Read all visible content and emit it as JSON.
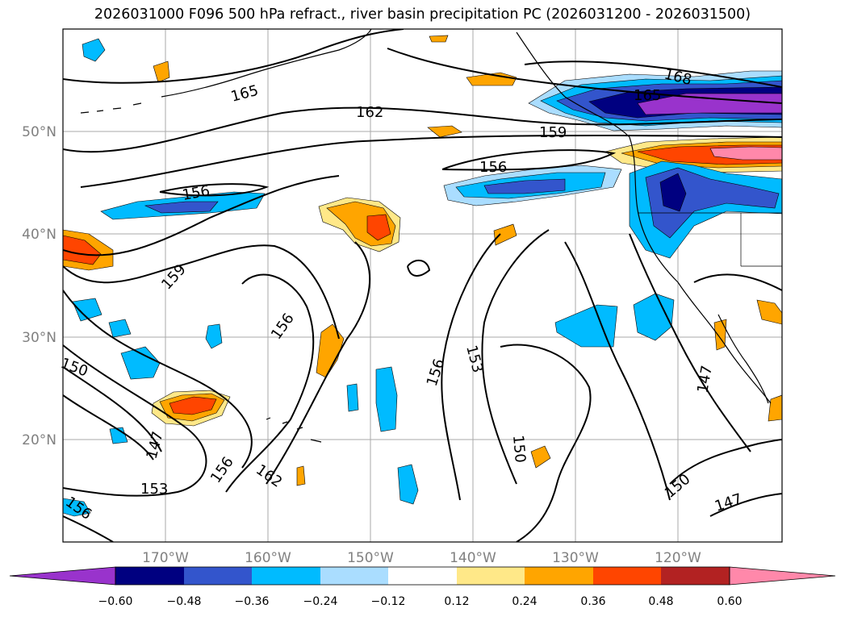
{
  "title": "2026031000 F096 500 hPa refract., river basin precipitation PC (2026031200 - 2026031500)",
  "map": {
    "lat_ticks": [
      "50°N",
      "40°N",
      "30°N",
      "20°N"
    ],
    "lon_ticks": [
      "170°W",
      "160°W",
      "150°W",
      "140°W",
      "130°W",
      "120°W"
    ],
    "contour_labels": [
      "168",
      "165",
      "165",
      "162",
      "159",
      "156",
      "156",
      "159",
      "156",
      "153",
      "156",
      "150",
      "147",
      "153",
      "156",
      "162",
      "150",
      "150",
      "147",
      "147",
      "156"
    ]
  },
  "colorbar": {
    "ticks": [
      "−0.60",
      "−0.48",
      "−0.36",
      "−0.24",
      "−0.12",
      "0.12",
      "0.24",
      "0.36",
      "0.48",
      "0.60"
    ],
    "colors": [
      "#9933cc",
      "#000080",
      "#3355cc",
      "#00bbff",
      "#aaddff",
      "#ffffff",
      "#ffe888",
      "#ffa500",
      "#ff4500",
      "#b22222",
      "#ff88aa"
    ]
  },
  "colors": {
    "neg_purple": "#9933cc",
    "neg_navy": "#000080",
    "neg_blue": "#3355cc",
    "neg_cyan": "#00bbff",
    "neg_light": "#aaddff",
    "pos_yellow": "#ffe888",
    "pos_orange": "#ffa500",
    "pos_red": "#ff4500",
    "pos_darkred": "#b22222",
    "pos_pink": "#ff88aa"
  }
}
